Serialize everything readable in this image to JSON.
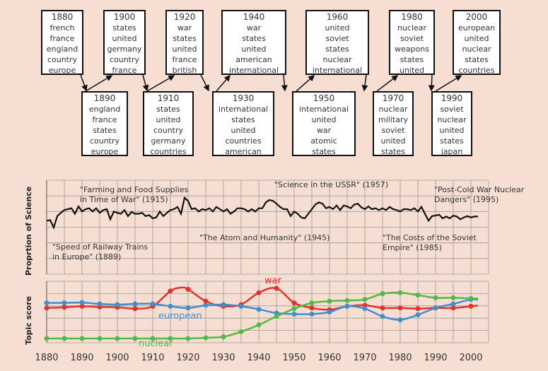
{
  "decades": [
    {
      "year": "1880",
      "words": [
        "french",
        "france",
        "england",
        "country",
        "europe"
      ]
    },
    {
      "year": "1890",
      "words": [
        "england",
        "france",
        "states",
        "country",
        "europe"
      ]
    },
    {
      "year": "1900",
      "words": [
        "states",
        "united",
        "germany",
        "country",
        "france"
      ]
    },
    {
      "year": "1910",
      "words": [
        "states",
        "united",
        "country",
        "germany",
        "countries"
      ]
    },
    {
      "year": "1920",
      "words": [
        "war",
        "states",
        "united",
        "france",
        "british"
      ]
    },
    {
      "year": "1930",
      "words": [
        "international",
        "states",
        "united",
        "countries",
        "american"
      ]
    },
    {
      "year": "1940",
      "words": [
        "war",
        "states",
        "united",
        "american",
        "international"
      ]
    },
    {
      "year": "1950",
      "words": [
        "international",
        "united",
        "war",
        "atomic",
        "states"
      ]
    },
    {
      "year": "1960",
      "words": [
        "united",
        "soviet",
        "states",
        "nuclear",
        "international"
      ]
    },
    {
      "year": "1970",
      "words": [
        "nuclear",
        "military",
        "soviet",
        "united",
        "states"
      ]
    },
    {
      "year": "1980",
      "words": [
        "nuclear",
        "soviet",
        "weapons",
        "states",
        "united"
      ]
    },
    {
      "year": "1990",
      "words": [
        "soviet",
        "nuclear",
        "united",
        "states",
        "japan"
      ]
    },
    {
      "year": "2000",
      "words": [
        "european",
        "united",
        "nuclear",
        "states",
        "countries"
      ]
    }
  ],
  "chart_data": [
    {
      "type": "line",
      "ylabel": "Proprtion of Science",
      "xlim": [
        1877,
        2005
      ],
      "series": [
        {
          "x": [
            1880,
            1881,
            1882,
            1883,
            1884,
            1885,
            1886,
            1887,
            1888,
            1889,
            1890,
            1891,
            1892,
            1893,
            1894,
            1895,
            1896,
            1897,
            1898,
            1899,
            1900,
            1901,
            1902,
            1903,
            1904,
            1905,
            1906,
            1907,
            1908,
            1909,
            1910,
            1911,
            1912,
            1913,
            1914,
            1915,
            1916,
            1917,
            1918,
            1919,
            1920,
            1921,
            1922,
            1923,
            1924,
            1925,
            1926,
            1927,
            1928,
            1929,
            1930,
            1931,
            1932,
            1933,
            1934,
            1935,
            1936,
            1937,
            1938,
            1939,
            1940,
            1941,
            1942,
            1943,
            1944,
            1945,
            1946,
            1947,
            1948,
            1949,
            1950,
            1951,
            1952,
            1953,
            1954,
            1955,
            1956,
            1957,
            1958,
            1959,
            1960,
            1961,
            1962,
            1963,
            1964,
            1965,
            1966,
            1967,
            1968,
            1969,
            1970,
            1971,
            1972,
            1973,
            1974,
            1975,
            1976,
            1977,
            1978,
            1979,
            1980,
            1981,
            1982,
            1983,
            1984,
            1985,
            1986,
            1987,
            1988,
            1989,
            1990,
            1991,
            1992,
            1993,
            1994,
            1995,
            1996,
            1997,
            1998,
            1999,
            2000,
            2001,
            2002
          ],
          "values": [
            0.35,
            0.36,
            0.2,
            0.45,
            0.52,
            0.58,
            0.6,
            0.62,
            0.5,
            0.66,
            0.55,
            0.6,
            0.62,
            0.55,
            0.62,
            0.52,
            0.58,
            0.6,
            0.38,
            0.55,
            0.52,
            0.5,
            0.58,
            0.45,
            0.54,
            0.5,
            0.5,
            0.52,
            0.45,
            0.47,
            0.4,
            0.42,
            0.55,
            0.45,
            0.52,
            0.58,
            0.6,
            0.65,
            0.5,
            0.85,
            0.78,
            0.6,
            0.62,
            0.55,
            0.6,
            0.58,
            0.62,
            0.55,
            0.65,
            0.6,
            0.55,
            0.6,
            0.5,
            0.55,
            0.62,
            0.62,
            0.6,
            0.55,
            0.6,
            0.55,
            0.62,
            0.62,
            0.75,
            0.8,
            0.78,
            0.72,
            0.65,
            0.6,
            0.6,
            0.45,
            0.55,
            0.5,
            0.42,
            0.4,
            0.5,
            0.6,
            0.7,
            0.75,
            0.72,
            0.62,
            0.65,
            0.6,
            0.68,
            0.58,
            0.68,
            0.66,
            0.62,
            0.7,
            0.72,
            0.64,
            0.6,
            0.66,
            0.6,
            0.62,
            0.58,
            0.62,
            0.58,
            0.65,
            0.6,
            0.58,
            0.55,
            0.6,
            0.6,
            0.58,
            0.62,
            0.55,
            0.65,
            0.5,
            0.35,
            0.45,
            0.46,
            0.48,
            0.4,
            0.44,
            0.4,
            0.46,
            0.44,
            0.38,
            0.42,
            0.45,
            0.42,
            0.44,
            0.44
          ]
        }
      ],
      "annotations": [
        {
          "text": [
            "\"Farming and Food Supplies",
            "in Time of War\" (1915)"
          ]
        },
        {
          "text": [
            "\"Science in the USSR\" (1957)"
          ]
        },
        {
          "text": [
            "\"Post-Cold War Nuclear",
            "Dangers\" (1995)"
          ]
        },
        {
          "text": [
            "\"Speed of Railway Trains",
            "in Europe\" (1889)"
          ]
        },
        {
          "text": [
            "\"The Atom and Humanity\" (1945)"
          ]
        },
        {
          "text": [
            "\"The Costs of the Soviet",
            "Empire\" (1985)"
          ]
        }
      ]
    },
    {
      "type": "line",
      "ylabel": "Topic score",
      "xlim": [
        1877,
        2005
      ],
      "series": [
        {
          "name": "war",
          "color": "#e4322b",
          "x": [
            1880,
            1885,
            1890,
            1895,
            1900,
            1905,
            1910,
            1915,
            1918,
            1920,
            1925,
            1930,
            1935,
            1940,
            1945,
            1950,
            1955,
            1960,
            1965,
            1970,
            1975,
            1980,
            1985,
            1990,
            1995,
            2000,
            2002
          ],
          "values": [
            0.4,
            0.42,
            0.45,
            0.43,
            0.42,
            0.38,
            0.45,
            0.9,
            1.0,
            0.95,
            0.6,
            0.45,
            0.5,
            0.85,
            0.98,
            0.55,
            0.4,
            0.35,
            0.45,
            0.48,
            0.4,
            0.4,
            0.38,
            0.4,
            0.4,
            0.45,
            0.47
          ]
        },
        {
          "name": "european",
          "color": "#3f8fce",
          "x": [
            1880,
            1885,
            1890,
            1895,
            1900,
            1905,
            1910,
            1915,
            1920,
            1925,
            1930,
            1935,
            1940,
            1945,
            1950,
            1955,
            1960,
            1965,
            1970,
            1975,
            1980,
            1985,
            1990,
            1995,
            2000,
            2002
          ],
          "values": [
            0.55,
            0.55,
            0.56,
            0.52,
            0.5,
            0.52,
            0.52,
            0.45,
            0.4,
            0.48,
            0.5,
            0.45,
            0.36,
            0.25,
            0.22,
            0.22,
            0.28,
            0.45,
            0.38,
            0.15,
            0.05,
            0.2,
            0.4,
            0.52,
            0.65,
            0.64
          ]
        },
        {
          "name": "nuclear",
          "color": "#54b948",
          "x": [
            1880,
            1885,
            1890,
            1895,
            1900,
            1905,
            1910,
            1915,
            1920,
            1925,
            1930,
            1935,
            1940,
            1945,
            1950,
            1955,
            1960,
            1965,
            1970,
            1975,
            1980,
            1985,
            1990,
            1995,
            2000,
            2002
          ],
          "values": [
            -0.5,
            -0.5,
            -0.5,
            -0.5,
            -0.5,
            -0.5,
            -0.5,
            -0.5,
            -0.5,
            -0.48,
            -0.45,
            -0.3,
            -0.1,
            0.15,
            0.38,
            0.55,
            0.6,
            0.62,
            0.65,
            0.82,
            0.85,
            0.78,
            0.7,
            0.7,
            0.68,
            0.68
          ]
        }
      ]
    }
  ],
  "xticks": [
    "1880",
    "1890",
    "1900",
    "1910",
    "1920",
    "1930",
    "1940",
    "1950",
    "1960",
    "1970",
    "1980",
    "1990",
    "2000"
  ],
  "colors": {
    "background": "#f6dfd2",
    "war": "#e4322b",
    "european": "#3f8fce",
    "nuclear": "#54b948",
    "science": "#111111"
  }
}
